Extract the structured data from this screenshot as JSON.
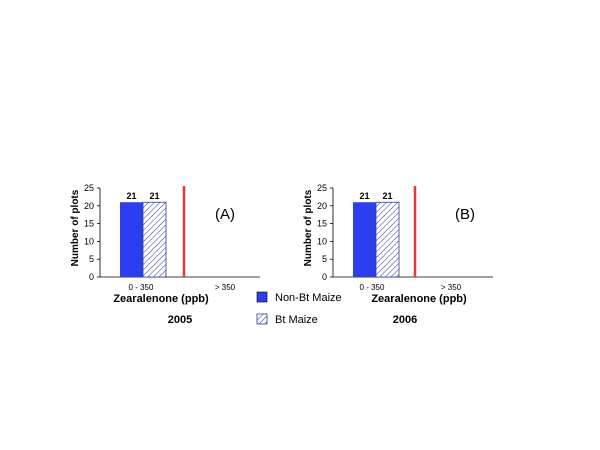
{
  "chart_data": [
    {
      "type": "bar",
      "panel_label": "(A)",
      "year_label": "2005",
      "categories": [
        "0 - 350",
        "> 350"
      ],
      "series": [
        {
          "name": "Non-Bt Maize",
          "values": [
            21,
            null
          ]
        },
        {
          "name": "Bt Maize",
          "values": [
            21,
            null
          ]
        }
      ],
      "data_labels": [
        "21",
        "21"
      ],
      "xlabel": "Zearalenone (ppb)",
      "ylabel": "Number of plots",
      "ylim": [
        0,
        25
      ],
      "yticks": [
        "0",
        "5",
        "10",
        "15",
        "20",
        "25"
      ],
      "threshold_line": "between categories",
      "threshold_color": "#e53935",
      "grid": false
    },
    {
      "type": "bar",
      "panel_label": "(B)",
      "year_label": "2006",
      "categories": [
        "0 - 350",
        "> 350"
      ],
      "series": [
        {
          "name": "Non-Bt Maize",
          "values": [
            21,
            null
          ]
        },
        {
          "name": "Bt Maize",
          "values": [
            21,
            null
          ]
        }
      ],
      "data_labels": [
        "21",
        "21"
      ],
      "xlabel": "Zearalenone  (ppb)",
      "ylabel": "Number of plots",
      "ylim": [
        0,
        25
      ],
      "yticks": [
        "0",
        "5",
        "10",
        "15",
        "20",
        "25"
      ],
      "threshold_line": "between categories",
      "threshold_color": "#e53935",
      "grid": false
    }
  ],
  "legend": {
    "placement": "bottom-center",
    "items": [
      {
        "label": "Non-Bt Maize",
        "style": "solid",
        "color": "#2b3ff0"
      },
      {
        "label": "Bt Maize",
        "style": "hatched",
        "color": "#2b3a9a"
      }
    ]
  },
  "colors": {
    "non_bt": "#2b3ff0",
    "bt_hatch": "#2b3a9a",
    "threshold": "#e53935"
  }
}
